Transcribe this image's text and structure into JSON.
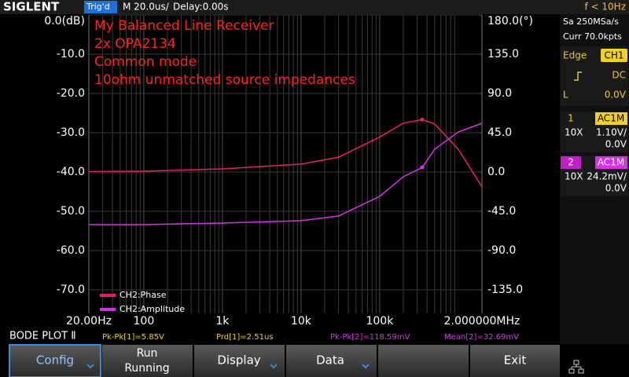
{
  "header": {
    "brand": "SIGLENT",
    "trigger": "Trig'd",
    "timebase": "M 20.0us/",
    "delay": "Delay:0.00s",
    "frequency": "f < 10Hz"
  },
  "side_panel": {
    "sample_rate": "Sa 250MSa/s",
    "memory": "Curr 70.0kpts",
    "trigger": {
      "type": "Edge",
      "source": "CH1",
      "coupling": "DC",
      "level_label": "L",
      "level": "0.0V"
    },
    "channels": [
      {
        "number": "1",
        "coupling": "AC1M",
        "probe": "10X",
        "scale": "1.10V/",
        "offset": "0.0V"
      },
      {
        "number": "2",
        "coupling": "AC1M",
        "probe": "10X",
        "scale": "24.2mV/",
        "offset": "0.0V"
      }
    ]
  },
  "chart_data": {
    "type": "line",
    "annotations": [
      "My Balanced Line Receiver",
      "2x OPA2134",
      "Common mode",
      "10ohm unmatched source impedances"
    ],
    "x": [
      20,
      100,
      1000,
      10000,
      30000,
      100000,
      200000,
      350000,
      500000,
      1000000,
      2000000
    ],
    "xlim": [
      20,
      2000000
    ],
    "log_x": true,
    "xticks": [
      {
        "value": 20,
        "label": "20.00Hz"
      },
      100,
      {
        "value": 1000,
        "label": "1k"
      },
      {
        "value": 10000,
        "label": "10k"
      },
      {
        "value": 100000,
        "label": "100k"
      },
      {
        "value": 2000000,
        "label": "2.000000MHz"
      }
    ],
    "ylim": [
      -76,
      0
    ],
    "yticks": [
      {
        "value": 0,
        "label": "0.0(dB)"
      },
      {
        "value": -10,
        "label": "-10.0"
      },
      {
        "value": -20,
        "label": "-20.0"
      },
      {
        "value": -30,
        "label": "-30.0"
      },
      {
        "value": -40,
        "label": "-40.0"
      },
      {
        "value": -50,
        "label": "-50.0"
      },
      {
        "value": -60,
        "label": "-60.0"
      },
      {
        "value": -70,
        "label": "-70.0"
      }
    ],
    "y2lim": [
      -162,
      180
    ],
    "y2ticks": [
      {
        "value": 180,
        "label": "180.0(°)"
      },
      {
        "value": 135,
        "label": "135.0"
      },
      {
        "value": 90,
        "label": "90.0"
      },
      {
        "value": 45,
        "label": "45.0"
      },
      {
        "value": 0,
        "label": "0.0"
      },
      {
        "value": -45,
        "label": "-45.0"
      },
      {
        "value": -90,
        "label": "-90.0"
      },
      {
        "value": -135,
        "label": "-135.0"
      }
    ],
    "grid": true,
    "legend": "bottom-left",
    "series": [
      {
        "name": "CH2:Phase",
        "color": "#e8205c",
        "axis": "y2",
        "values": [
          0.5,
          0.9,
          3.6,
          9,
          17,
          40,
          56,
          60,
          55,
          26,
          -17
        ]
      },
      {
        "name": "CH2:Amplitude",
        "color": "#d830e8",
        "values": [
          -53.4,
          -53.4,
          -53,
          -52.4,
          -51.2,
          -46.2,
          -41.2,
          -38.8,
          -34.2,
          -29.8,
          -27.6
        ]
      }
    ],
    "cursor": {
      "x": 347000,
      "values": [
        60,
        -38.8
      ]
    }
  },
  "bottom_title": "BODE PLOT Ⅱ",
  "measurements": [
    "Pk-Pk[1]=5.85V",
    "Prd[1]=2.51us",
    "Pk-Pk[2]=118.59mV",
    "Mean[2]=32.69mV"
  ],
  "menu": [
    "Config",
    "Run",
    "Running",
    "Display",
    "Data",
    "Exit"
  ]
}
